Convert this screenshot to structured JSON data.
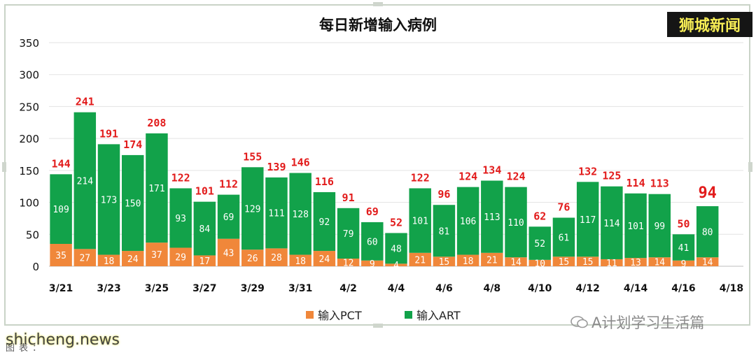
{
  "brand": "狮城新闻",
  "watermark": "A计划学习生活篇",
  "source_site": "shicheng.news",
  "caption_label": "图表：",
  "chart_data": {
    "type": "bar",
    "stacked": true,
    "title": "每日新增输入病例",
    "xlabel": "",
    "ylabel": "",
    "ylim": [
      0,
      350
    ],
    "yticks": [
      0,
      50,
      100,
      150,
      200,
      250,
      300,
      350
    ],
    "grid": true,
    "legend_position": "bottom",
    "categories": [
      "3/21",
      "3/22",
      "3/23",
      "3/24",
      "3/25",
      "3/26",
      "3/27",
      "3/28",
      "3/29",
      "3/30",
      "3/31",
      "4/1",
      "4/2",
      "4/3",
      "4/4",
      "4/5",
      "4/6",
      "4/7",
      "4/8",
      "4/9",
      "4/10",
      "4/11",
      "4/12",
      "4/13",
      "4/14",
      "4/15",
      "4/16",
      "4/17",
      "4/18"
    ],
    "tick_labels": [
      "3/21",
      "3/23",
      "3/25",
      "3/27",
      "3/29",
      "3/31",
      "4/2",
      "4/4",
      "4/6",
      "4/8",
      "4/10",
      "4/12",
      "4/14",
      "4/16",
      "4/18"
    ],
    "series": [
      {
        "name": "输入PCT",
        "color": "#f0873a",
        "values": [
          35,
          27,
          18,
          24,
          37,
          29,
          17,
          43,
          26,
          28,
          18,
          24,
          12,
          9,
          4,
          21,
          15,
          18,
          21,
          14,
          10,
          15,
          15,
          11,
          13,
          14,
          9,
          14,
          0
        ]
      },
      {
        "name": "输入ART",
        "color": "#12a24a",
        "values": [
          109,
          214,
          173,
          150,
          171,
          93,
          84,
          69,
          129,
          111,
          128,
          92,
          79,
          60,
          48,
          101,
          81,
          106,
          113,
          110,
          52,
          61,
          117,
          114,
          101,
          99,
          41,
          80,
          0
        ]
      }
    ],
    "totals": [
      144,
      241,
      191,
      174,
      208,
      122,
      101,
      112,
      155,
      139,
      146,
      116,
      91,
      69,
      52,
      122,
      96,
      124,
      134,
      124,
      62,
      76,
      132,
      125,
      114,
      113,
      50,
      94,
      null
    ],
    "total_label_color": "#e21b1b",
    "highlight_last_total": true
  }
}
